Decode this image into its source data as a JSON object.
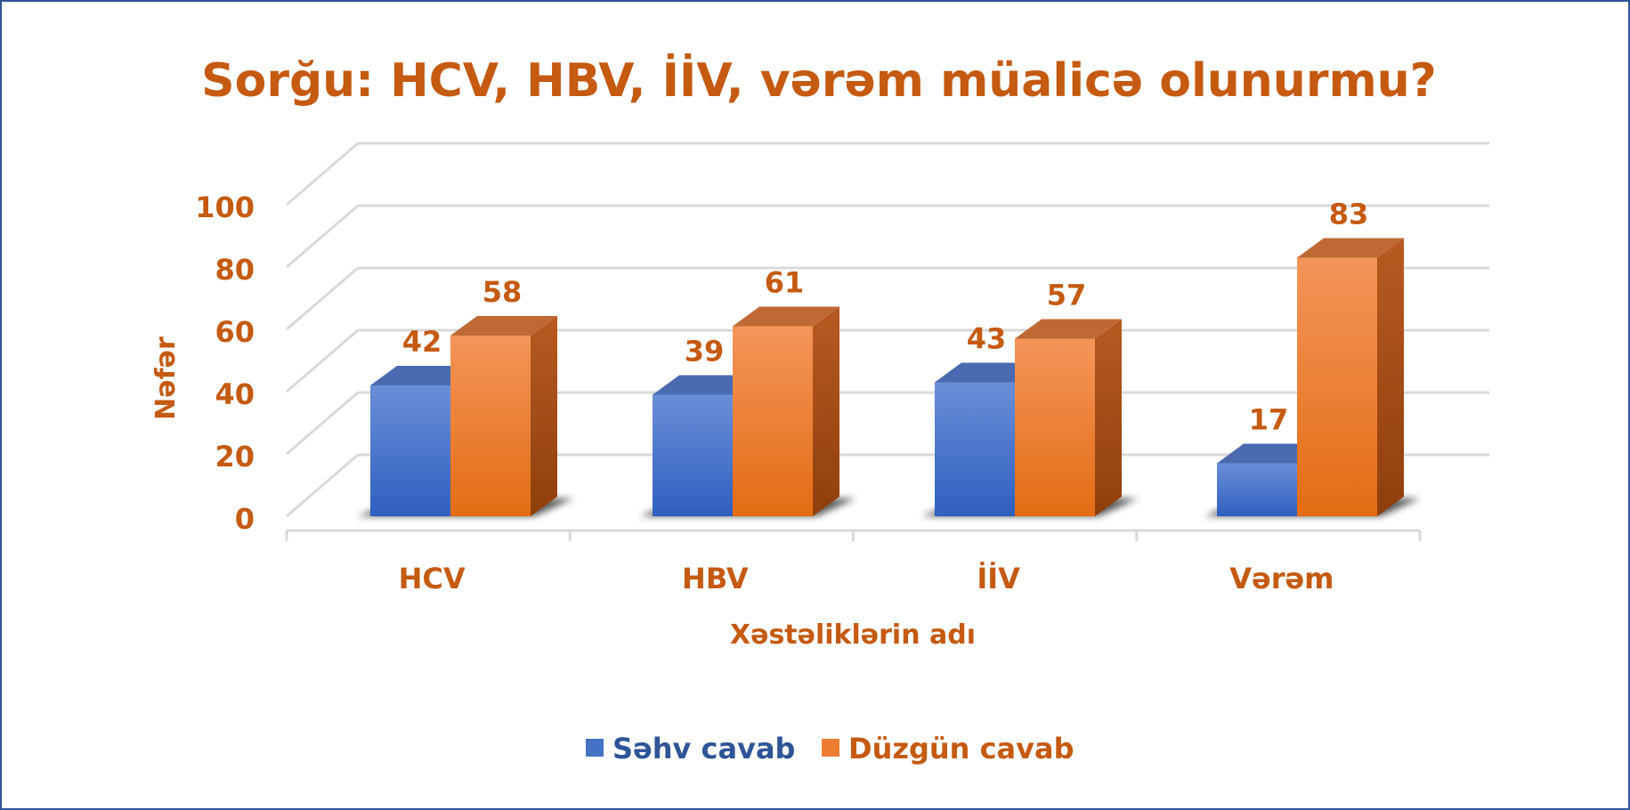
{
  "chart_data": {
    "type": "bar",
    "title": "Sorğu: HCV, HBV, İİV, vərəm müalicə olunurmu?",
    "xlabel": "Xəstəliklərin adı",
    "ylabel": "Nəfər",
    "ylim": [
      0,
      100
    ],
    "yticks": [
      "0",
      "20",
      "40",
      "60",
      "80",
      "100"
    ],
    "categories": [
      "HCV",
      "HBV",
      "İİV",
      "Vərəm"
    ],
    "series": [
      {
        "name": "Səhv cavab",
        "values": [
          42,
          39,
          43,
          17
        ],
        "color": "#4472c4"
      },
      {
        "name": "Düzgün cavab",
        "values": [
          58,
          61,
          57,
          83
        ],
        "color": "#ed7d31"
      }
    ],
    "data_labels": true,
    "grid": true,
    "legend": "bottom",
    "style": "3d-clustered-column"
  }
}
